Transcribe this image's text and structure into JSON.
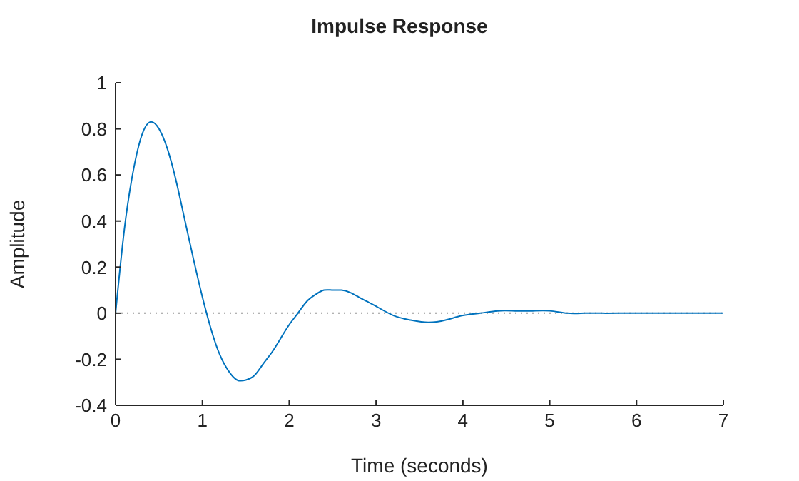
{
  "chart_data": {
    "type": "line",
    "title": "Impulse Response",
    "xlabel": "Time (seconds)",
    "ylabel": "Amplitude",
    "x": [
      0,
      0.1,
      0.2,
      0.3,
      0.4,
      0.5,
      0.6,
      0.7,
      0.8,
      0.9,
      1.0,
      1.1,
      1.2,
      1.3,
      1.4,
      1.5,
      1.6,
      1.7,
      1.8,
      1.9,
      2.0,
      2.1,
      2.2,
      2.3,
      2.4,
      2.5,
      2.6,
      2.7,
      2.8,
      2.9,
      3.0,
      3.2,
      3.4,
      3.6,
      3.8,
      4.0,
      4.2,
      4.4,
      4.6,
      4.8,
      5.0,
      5.2,
      5.4,
      5.6,
      5.8,
      6.0,
      6.5,
      7.0
    ],
    "series": [
      {
        "color": "#0072bd",
        "values": [
          0,
          0.36,
          0.61,
          0.77,
          0.83,
          0.8,
          0.71,
          0.57,
          0.4,
          0.23,
          0.07,
          -0.07,
          -0.18,
          -0.25,
          -0.29,
          -0.29,
          -0.27,
          -0.22,
          -0.17,
          -0.11,
          -0.05,
          0.0,
          0.05,
          0.08,
          0.1,
          0.1,
          0.1,
          0.09,
          0.07,
          0.05,
          0.03,
          -0.01,
          -0.03,
          -0.04,
          -0.03,
          -0.01,
          0.0,
          0.01,
          0.01,
          0.01,
          0.01,
          0.0,
          0.0,
          0.0,
          0.0,
          0.0,
          0.0,
          0.0
        ]
      }
    ],
    "xlim": [
      0,
      7
    ],
    "xticks": [
      0,
      1,
      2,
      3,
      4,
      5,
      6,
      7
    ],
    "ylim": [
      -0.4,
      1
    ],
    "yticks": [
      -0.4,
      -0.2,
      0,
      0.2,
      0.4,
      0.6,
      0.8,
      1
    ],
    "grid": false,
    "marker": "none",
    "line_style": "solid",
    "ref_lines": [
      {
        "axis": "y",
        "value": 0,
        "color": "#999999",
        "line_style": "dotted"
      }
    ]
  }
}
